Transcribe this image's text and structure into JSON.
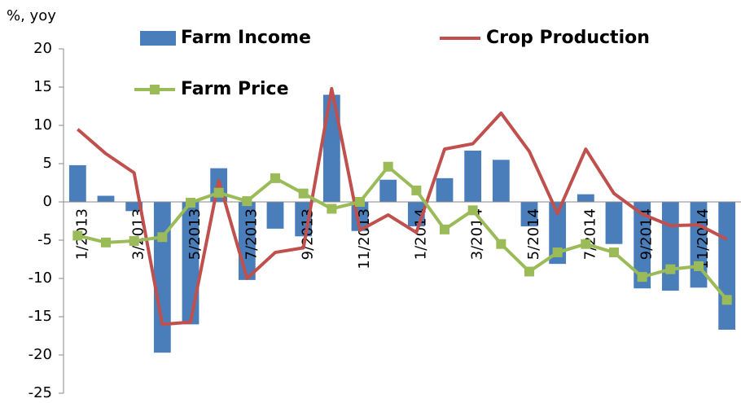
{
  "chart_data": {
    "type": "bar_line",
    "y_label": "%, yoy",
    "categories": [
      "1/2013",
      null,
      "3/2013",
      null,
      "5/2013",
      null,
      "7/2013",
      null,
      "9/2013",
      null,
      "11/2013",
      null,
      "1/2014",
      null,
      "3/2014",
      null,
      "5/2014",
      null,
      "7/2014",
      null,
      "9/2014",
      null,
      "11/2014",
      null
    ],
    "ylim": [
      -25,
      20
    ],
    "yticks": [
      -25,
      -20,
      -15,
      -10,
      -5,
      0,
      5,
      10,
      15,
      20
    ],
    "series": [
      {
        "name": "Farm Income",
        "type": "bar",
        "color": "#4a7ebb",
        "values": [
          4.8,
          0.8,
          -1.2,
          -19.7,
          -16,
          4.4,
          -10.2,
          -3.5,
          -4.5,
          14,
          -3.8,
          2.9,
          -3.2,
          3.1,
          6.7,
          5.5,
          -3.2,
          -8.1,
          1.0,
          -5.5,
          -11.3,
          -11.6,
          -11.2,
          -16.7
        ]
      },
      {
        "name": "Crop Production",
        "type": "line",
        "color": "#c0504d",
        "values": [
          9.5,
          6.3,
          3.8,
          -16,
          -15.7,
          2.8,
          -10,
          -6.6,
          -6,
          14.8,
          -3.7,
          -1.7,
          -4,
          6.9,
          7.6,
          11.6,
          6.6,
          -1.5,
          6.9,
          1.1,
          -1.6,
          -3.1,
          -3.0,
          -4.9
        ]
      },
      {
        "name": "Farm Price",
        "type": "line",
        "marker": "square",
        "color": "#9bbb59",
        "values": [
          -4.4,
          -5.3,
          -5.1,
          -4.6,
          -0.1,
          1.2,
          0.1,
          3.1,
          1.1,
          -0.9,
          0,
          4.6,
          1.5,
          -3.6,
          -1.1,
          -5.5,
          -9.1,
          -6.6,
          -5.5,
          -6.6,
          -9.8,
          -8.8,
          -8.4,
          -12.8
        ]
      }
    ]
  }
}
